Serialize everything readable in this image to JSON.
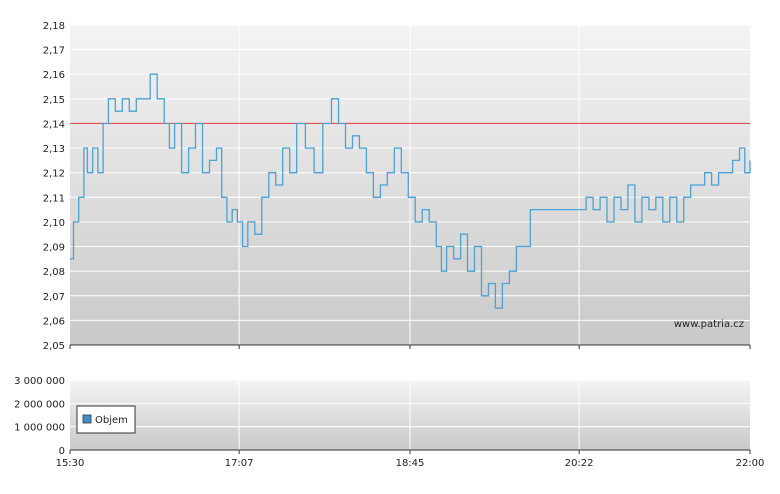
{
  "watermark": "www.patria.cz",
  "colors": {
    "price_line": "#4aa3d4",
    "reference_line": "#e05050",
    "grid": "#ffffff",
    "legend_swatch": "#3f8fc8",
    "panel_top": "#f4f4f4",
    "panel_bottom": "#c9c9c9"
  },
  "chart_data": [
    {
      "type": "line",
      "title": "",
      "xlabel": "",
      "ylabel": "",
      "ylim": [
        2.05,
        2.18
      ],
      "y_ticks": [
        "2,18",
        "2,17",
        "2,16",
        "2,15",
        "2,14",
        "2,13",
        "2,12",
        "2,11",
        "2,10",
        "2,09",
        "2,08",
        "2,07",
        "2,06",
        "2,05"
      ],
      "x_range": [
        "15:30",
        "22:00"
      ],
      "grid": true,
      "reference_line": 2.14,
      "series": [
        {
          "values": [
            [
              "15:30",
              2.085
            ],
            [
              "15:32",
              2.1
            ],
            [
              "15:35",
              2.11
            ],
            [
              "15:38",
              2.13
            ],
            [
              "15:40",
              2.12
            ],
            [
              "15:43",
              2.13
            ],
            [
              "15:46",
              2.12
            ],
            [
              "15:49",
              2.14
            ],
            [
              "15:52",
              2.15
            ],
            [
              "15:56",
              2.145
            ],
            [
              "16:00",
              2.15
            ],
            [
              "16:04",
              2.145
            ],
            [
              "16:08",
              2.15
            ],
            [
              "16:12",
              2.15
            ],
            [
              "16:16",
              2.16
            ],
            [
              "16:20",
              2.15
            ],
            [
              "16:24",
              2.14
            ],
            [
              "16:27",
              2.13
            ],
            [
              "16:30",
              2.14
            ],
            [
              "16:34",
              2.12
            ],
            [
              "16:38",
              2.13
            ],
            [
              "16:42",
              2.14
            ],
            [
              "16:46",
              2.12
            ],
            [
              "16:50",
              2.125
            ],
            [
              "16:54",
              2.13
            ],
            [
              "16:57",
              2.11
            ],
            [
              "17:00",
              2.1
            ],
            [
              "17:03",
              2.105
            ],
            [
              "17:06",
              2.1
            ],
            [
              "17:09",
              2.09
            ],
            [
              "17:12",
              2.1
            ],
            [
              "17:16",
              2.095
            ],
            [
              "17:20",
              2.11
            ],
            [
              "17:24",
              2.12
            ],
            [
              "17:28",
              2.115
            ],
            [
              "17:32",
              2.13
            ],
            [
              "17:36",
              2.12
            ],
            [
              "17:40",
              2.14
            ],
            [
              "17:45",
              2.13
            ],
            [
              "17:50",
              2.12
            ],
            [
              "17:55",
              2.14
            ],
            [
              "18:00",
              2.15
            ],
            [
              "18:04",
              2.14
            ],
            [
              "18:08",
              2.13
            ],
            [
              "18:12",
              2.135
            ],
            [
              "18:16",
              2.13
            ],
            [
              "18:20",
              2.12
            ],
            [
              "18:24",
              2.11
            ],
            [
              "18:28",
              2.115
            ],
            [
              "18:32",
              2.12
            ],
            [
              "18:36",
              2.13
            ],
            [
              "18:40",
              2.12
            ],
            [
              "18:44",
              2.11
            ],
            [
              "18:48",
              2.1
            ],
            [
              "18:52",
              2.105
            ],
            [
              "18:56",
              2.1
            ],
            [
              "19:00",
              2.09
            ],
            [
              "19:03",
              2.08
            ],
            [
              "19:06",
              2.09
            ],
            [
              "19:10",
              2.085
            ],
            [
              "19:14",
              2.095
            ],
            [
              "19:18",
              2.08
            ],
            [
              "19:22",
              2.09
            ],
            [
              "19:26",
              2.07
            ],
            [
              "19:30",
              2.075
            ],
            [
              "19:34",
              2.065
            ],
            [
              "19:38",
              2.075
            ],
            [
              "19:42",
              2.08
            ],
            [
              "19:46",
              2.09
            ],
            [
              "19:50",
              2.09
            ],
            [
              "19:54",
              2.105
            ],
            [
              "19:58",
              2.105
            ],
            [
              "20:05",
              2.105
            ],
            [
              "20:12",
              2.105
            ],
            [
              "20:20",
              2.105
            ],
            [
              "20:26",
              2.11
            ],
            [
              "20:30",
              2.105
            ],
            [
              "20:34",
              2.11
            ],
            [
              "20:38",
              2.1
            ],
            [
              "20:42",
              2.11
            ],
            [
              "20:46",
              2.105
            ],
            [
              "20:50",
              2.115
            ],
            [
              "20:54",
              2.1
            ],
            [
              "20:58",
              2.11
            ],
            [
              "21:02",
              2.105
            ],
            [
              "21:06",
              2.11
            ],
            [
              "21:10",
              2.1
            ],
            [
              "21:14",
              2.11
            ],
            [
              "21:18",
              2.1
            ],
            [
              "21:22",
              2.11
            ],
            [
              "21:26",
              2.115
            ],
            [
              "21:30",
              2.115
            ],
            [
              "21:34",
              2.12
            ],
            [
              "21:38",
              2.115
            ],
            [
              "21:42",
              2.12
            ],
            [
              "21:46",
              2.12
            ],
            [
              "21:50",
              2.125
            ],
            [
              "21:54",
              2.13
            ],
            [
              "21:57",
              2.12
            ],
            [
              "22:00",
              2.125
            ]
          ]
        }
      ]
    },
    {
      "type": "bar",
      "title": "",
      "xlabel": "",
      "ylabel": "",
      "ylim": [
        0,
        3000000
      ],
      "y_ticks": [
        "3 000 000",
        "2 000 000",
        "1 000 000",
        "0"
      ],
      "x_ticks": [
        "15:30",
        "17:07",
        "18:45",
        "20:22",
        "22:00"
      ],
      "grid": true,
      "legend_position": "left",
      "series": [
        {
          "name": "Objem",
          "values": []
        }
      ]
    }
  ]
}
